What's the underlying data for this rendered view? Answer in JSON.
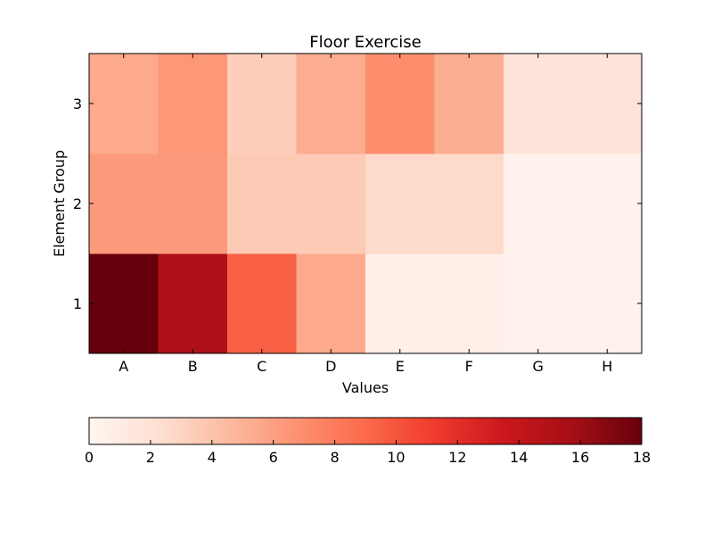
{
  "chart_data": {
    "type": "heatmap",
    "title": "Floor Exercise",
    "xlabel": "Values",
    "ylabel": "Element Group",
    "x_categories": [
      "A",
      "B",
      "C",
      "D",
      "E",
      "F",
      "G",
      "H"
    ],
    "y_categories": [
      "1",
      "2",
      "3"
    ],
    "values": [
      [
        18.0,
        15.3,
        9.5,
        5.5,
        0.6,
        0.6,
        0.3,
        0.3
      ],
      [
        6.3,
        6.3,
        3.6,
        3.6,
        2.6,
        2.6,
        0.4,
        0.4
      ],
      [
        5.5,
        6.5,
        3.3,
        5.3,
        7.0,
        5.2,
        1.8,
        1.8
      ]
    ],
    "colorbar": {
      "orientation": "horizontal",
      "placement": "bottom",
      "range": [
        0,
        18
      ],
      "ticks": [
        "0",
        "2",
        "4",
        "6",
        "8",
        "10",
        "12",
        "14",
        "16",
        "18"
      ]
    },
    "colormap": {
      "name": "Reds",
      "stops": [
        "#fff5f0",
        "#fee0d2",
        "#fcbba1",
        "#fc9272",
        "#fb6a4a",
        "#ef3b2c",
        "#cb181d",
        "#a50f15",
        "#67000d"
      ]
    }
  }
}
